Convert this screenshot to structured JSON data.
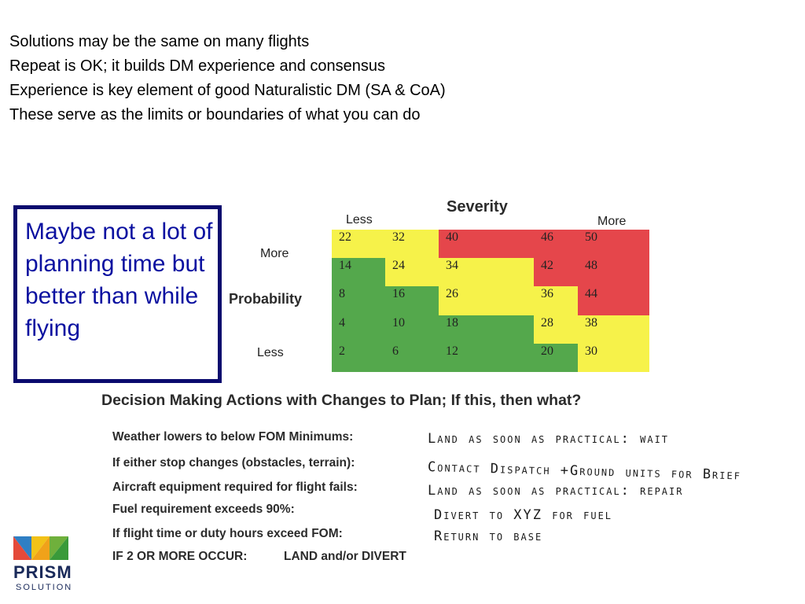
{
  "bullets": [
    "Solutions may be the same on many flights",
    "Repeat is OK; it builds DM experience and consensus",
    "Experience is key element of good Naturalistic DM (SA & CoA)",
    "These serve as the limits or boundaries of what you can do"
  ],
  "callout": "Maybe not a lot of planning time but better than while flying",
  "matrix": {
    "severity_label": "Severity",
    "severity_less": "Less",
    "severity_more": "More",
    "probability_label": "Probability",
    "probability_more": "More",
    "probability_less": "Less",
    "rows": [
      [
        {
          "v": "22",
          "c": "yellow"
        },
        {
          "v": "32",
          "c": "yellow"
        },
        {
          "v": "40",
          "c": "red"
        },
        {
          "v": "46",
          "c": "red"
        },
        {
          "v": "50",
          "c": "red"
        }
      ],
      [
        {
          "v": "14",
          "c": "green"
        },
        {
          "v": "24",
          "c": "yellow"
        },
        {
          "v": "34",
          "c": "yellow"
        },
        {
          "v": "42",
          "c": "red"
        },
        {
          "v": "48",
          "c": "red"
        }
      ],
      [
        {
          "v": "8",
          "c": "green"
        },
        {
          "v": "16",
          "c": "green"
        },
        {
          "v": "26",
          "c": "yellow"
        },
        {
          "v": "36",
          "c": "yellow"
        },
        {
          "v": "44",
          "c": "red"
        }
      ],
      [
        {
          "v": "4",
          "c": "green"
        },
        {
          "v": "10",
          "c": "green"
        },
        {
          "v": "18",
          "c": "green"
        },
        {
          "v": "28",
          "c": "yellow"
        },
        {
          "v": "38",
          "c": "yellow"
        }
      ],
      [
        {
          "v": "2",
          "c": "green"
        },
        {
          "v": "6",
          "c": "green"
        },
        {
          "v": "12",
          "c": "green"
        },
        {
          "v": "20",
          "c": "green"
        },
        {
          "v": "30",
          "c": "yellow"
        }
      ]
    ],
    "colors": {
      "red": "#e5464b",
      "yellow": "#f6f24a",
      "green": "#54a84c"
    }
  },
  "decision": {
    "title": "Decision Making Actions with Changes to Plan; If this, then what?",
    "rows": [
      {
        "condition": "Weather lowers to below FOM Minimums:",
        "action": "Land as soon as practical:  wait"
      },
      {
        "condition": "If either stop changes (obstacles, terrain):",
        "action": "Contact Dispatch +Ground units for Brief"
      },
      {
        "condition": "Aircraft equipment required for flight fails:",
        "action": "Land as soon as practical:  repair"
      },
      {
        "condition": "Fuel requirement exceeds 90%:",
        "action": "Divert to XYZ for fuel"
      },
      {
        "condition": "If flight time or duty hours exceed FOM:",
        "action": "Return to base"
      },
      {
        "condition": "IF 2 OR MORE OCCUR:",
        "action": "LAND and/or DIVERT"
      }
    ]
  },
  "logo": {
    "word": "PRISM",
    "sub": "SOLUTION"
  }
}
